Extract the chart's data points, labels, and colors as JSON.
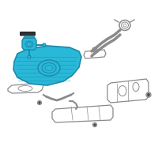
{
  "bg_color": "#ffffff",
  "fig_size": [
    2.0,
    2.0
  ],
  "dpi": 100,
  "tank_color": "#2ab8d8",
  "tank_edge_color": "#1a8aaa",
  "part_line_color": "#8a8a8a",
  "dark_part_color": "#444444",
  "line_width": 0.9
}
